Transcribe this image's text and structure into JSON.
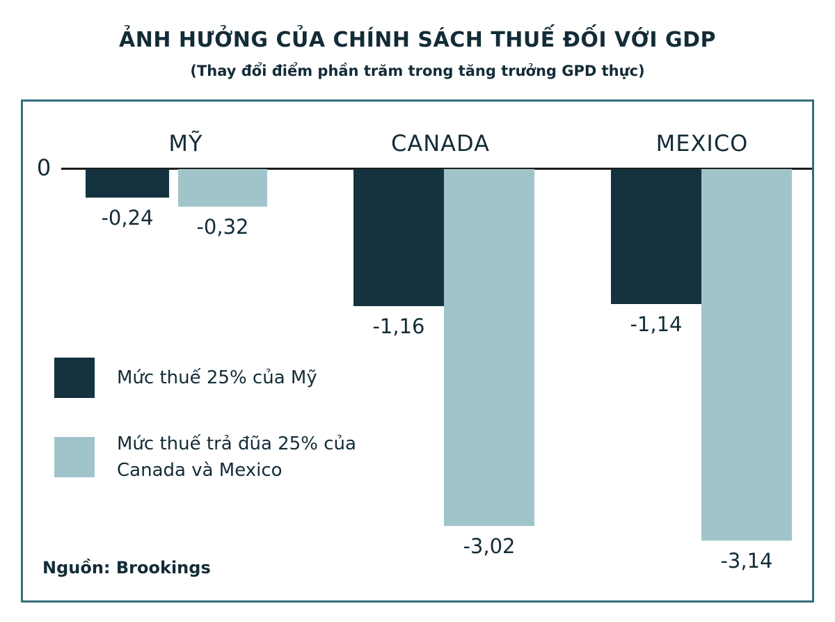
{
  "title": "ẢNH HƯỞNG CỦA CHÍNH SÁCH THUẾ ĐỐI VỚI GDP",
  "subtitle": "(Thay đổi điểm phần trăm trong tăng trưởng GPD thực)",
  "source": "Nguồn: Brookings",
  "zero_label": "0",
  "colors": {
    "dark_bar": "#14333f",
    "light_bar": "#9fc5ca",
    "border": "#336d79",
    "text": "#132c37",
    "axis_line": "#1c1c1c"
  },
  "legend": [
    {
      "label": "Mức thuế 25% của Mỹ",
      "swatch": "dark_bar"
    },
    {
      "label": "Mức thuế trả đũa 25% của Canada và Mexico",
      "swatch": "light_bar"
    }
  ],
  "chart_data": {
    "type": "bar",
    "orientation": "vertical",
    "categories": [
      "MỸ",
      "CANADA",
      "MEXICO"
    ],
    "series": [
      {
        "name": "Mức thuế 25% của Mỹ",
        "values": [
          -0.24,
          -1.16,
          -1.14
        ]
      },
      {
        "name": "Mức thuế trả đũa 25% của Canada và Mexico",
        "values": [
          -0.32,
          -3.02,
          -3.14
        ]
      }
    ],
    "value_labels": [
      [
        "-0,24",
        "-1,16",
        "-1,14"
      ],
      [
        "-0,32",
        "-3,02",
        "-3,14"
      ]
    ],
    "baseline": 0,
    "ylim": [
      -3.3,
      0
    ],
    "grid": false,
    "legend_position": "bottom-left"
  }
}
